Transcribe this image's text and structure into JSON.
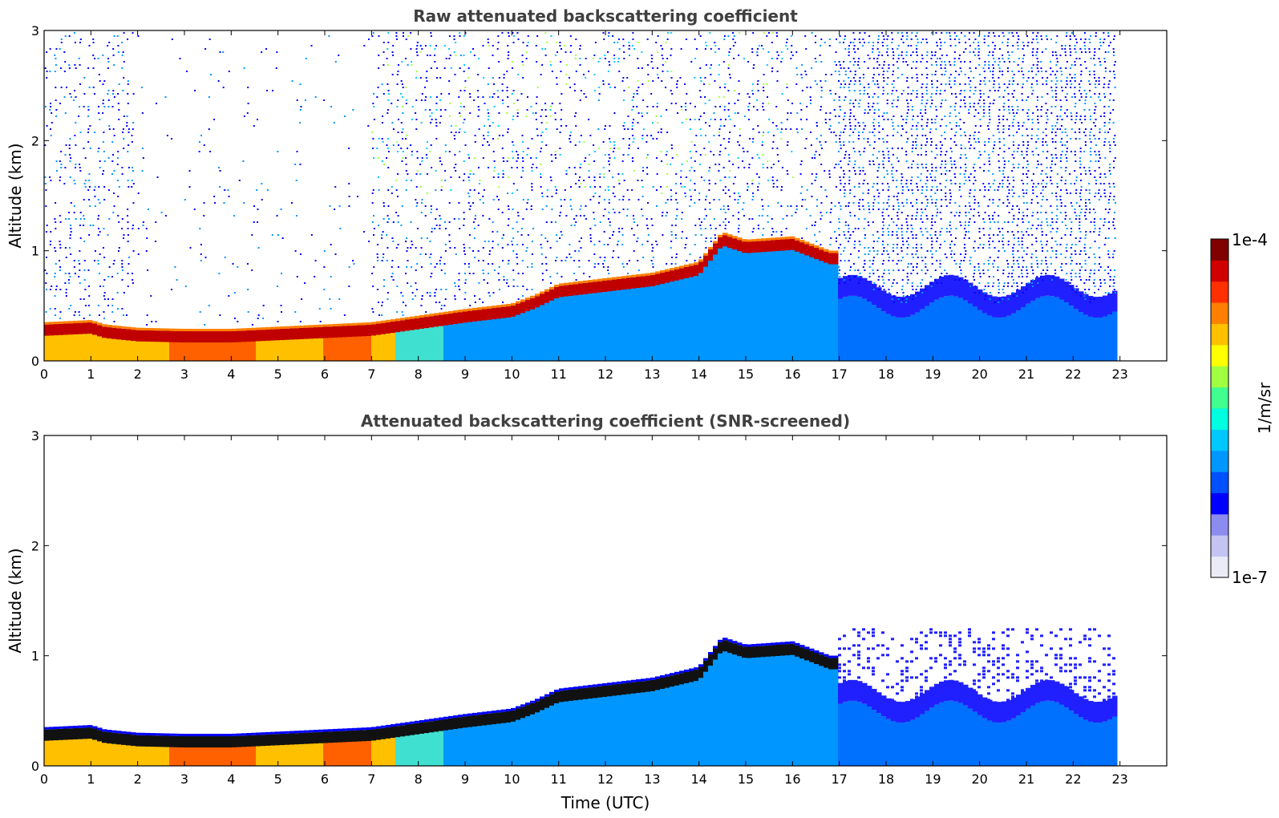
{
  "chart_data": [
    {
      "type": "heatmap",
      "title": "Raw attenuated backscattering coefficient",
      "xlabel": "",
      "ylabel": "Altitude (km)",
      "xlim": [
        0,
        24
      ],
      "ylim": [
        0,
        3
      ],
      "xticks": [
        "0",
        "1",
        "2",
        "3",
        "4",
        "5",
        "6",
        "7",
        "8",
        "9",
        "10",
        "11",
        "12",
        "13",
        "14",
        "15",
        "16",
        "17",
        "18",
        "19",
        "20",
        "21",
        "22",
        "23"
      ],
      "yticks": [
        "0",
        "1",
        "2",
        "3"
      ],
      "data_end_hour": 23,
      "layer_top_km": {
        "hours": [
          0,
          1,
          1.3,
          2,
          3,
          4,
          5,
          6,
          7,
          8,
          9,
          10,
          10.5,
          11,
          12,
          13,
          14,
          14.5,
          15,
          16,
          16.8
        ],
        "values": [
          0.3,
          0.32,
          0.28,
          0.25,
          0.24,
          0.24,
          0.26,
          0.28,
          0.3,
          0.36,
          0.42,
          0.47,
          0.55,
          0.65,
          0.7,
          0.75,
          0.85,
          1.12,
          1.05,
          1.08,
          0.95
        ]
      },
      "note_noise": "sparse noise above layer"
    },
    {
      "type": "heatmap",
      "title": "Attenuated backscattering coefficient (SNR-screened)",
      "xlabel": "Time (UTC)",
      "ylabel": "Altitude (km)",
      "xlim": [
        0,
        24
      ],
      "ylim": [
        0,
        3
      ],
      "xticks": [
        "0",
        "1",
        "2",
        "3",
        "4",
        "5",
        "6",
        "7",
        "8",
        "9",
        "10",
        "11",
        "12",
        "13",
        "14",
        "15",
        "16",
        "17",
        "18",
        "19",
        "20",
        "21",
        "22",
        "23"
      ],
      "yticks": [
        "0",
        "1",
        "2",
        "3"
      ],
      "data_end_hour": 23
    }
  ],
  "colorbar": {
    "max_label": "1e-4",
    "min_label": "1e-7",
    "unit_label": "1/m/sr",
    "colors": [
      "#ebebf8",
      "#c4c4f2",
      "#8c8cf0",
      "#0000ff",
      "#0050ff",
      "#0096ff",
      "#00c8ff",
      "#00ffe0",
      "#40ff90",
      "#a0ff40",
      "#ffff00",
      "#ffc000",
      "#ff8000",
      "#ff3000",
      "#d00000",
      "#800000"
    ]
  }
}
